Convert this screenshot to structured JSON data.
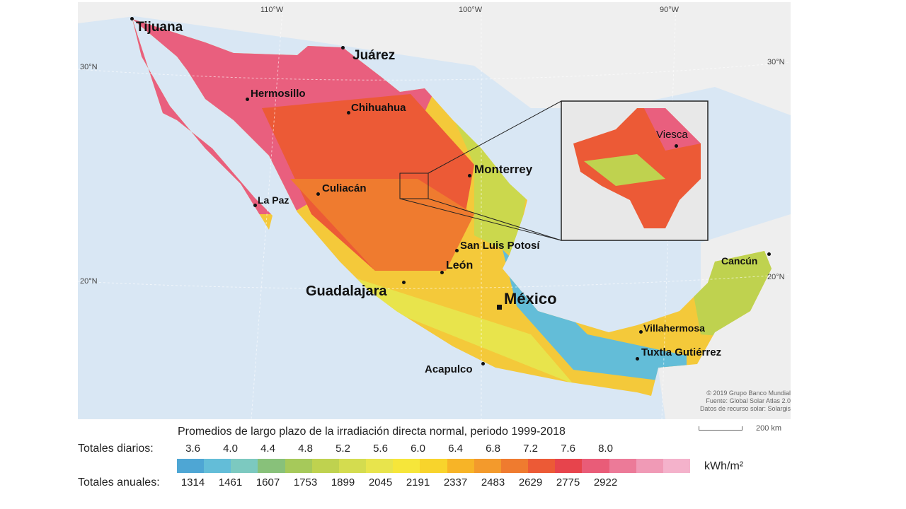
{
  "graticule": {
    "lon": [
      "110°W",
      "100°W",
      "90°W"
    ],
    "lat_left": [
      "30°N",
      "20°N"
    ],
    "lat_right": [
      "30°N",
      "20°N"
    ]
  },
  "cities": {
    "tijuana": "Tijuana",
    "juarez": "Juárez",
    "hermosillo": "Hermosillo",
    "chihuahua": "Chihuahua",
    "monterrey": "Monterrey",
    "culiacan": "Culiacán",
    "lapaz": "La Paz",
    "slp": "San Luis Potosí",
    "leon": "León",
    "guadalajara": "Guadalajara",
    "mexico": "México",
    "villahermosa": "Villahermosa",
    "tuxtla": "Tuxtla Gutiérrez",
    "acapulco": "Acapulco",
    "cancun": "Cancún",
    "viesca": "Viesca"
  },
  "attribution": [
    "© 2019 Grupo Banco Mundial",
    "Fuente: Global Solar Atlas 2.0",
    "Datos de recurso solar: Solargis"
  ],
  "scale_label": "200 km",
  "legend": {
    "title": "Promedios de largo plazo de la irradiación directa normal, periodo 1999-2018",
    "daily_label": "Totales diarios:",
    "daily_values": [
      "3.6",
      "4.0",
      "4.4",
      "4.8",
      "5.2",
      "5.6",
      "6.0",
      "6.4",
      "6.8",
      "7.2",
      "7.6",
      "8.0"
    ],
    "annual_label": "Totales anuales:",
    "annual_values": [
      "1314",
      "1461",
      "1607",
      "1753",
      "1899",
      "2045",
      "2191",
      "2337",
      "2483",
      "2629",
      "2775",
      "2922"
    ],
    "unit": "kWh/m²",
    "colors": [
      "#4ea6d4",
      "#63bdd8",
      "#7cc9c0",
      "#88c17a",
      "#a6c95a",
      "#bfd24f",
      "#d4dc4f",
      "#e8e44c",
      "#f6e63a",
      "#f8d42c",
      "#f7b427",
      "#f39a2c",
      "#ef7b2f",
      "#ec5a36",
      "#e7444c",
      "#e95c78",
      "#ec7a98",
      "#f09ab6",
      "#f4b2cb"
    ]
  }
}
